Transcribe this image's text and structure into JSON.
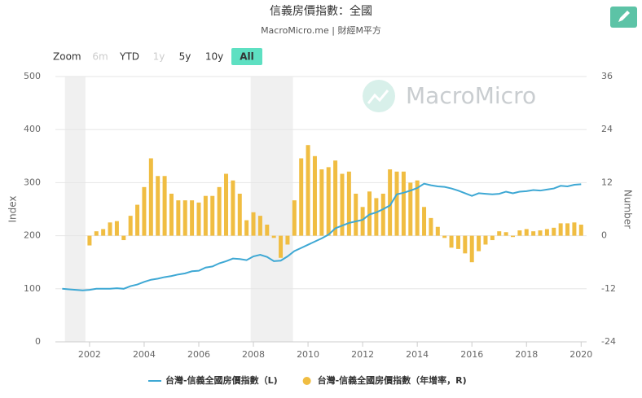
{
  "chart_data": {
    "type": "bar-line",
    "title": "信義房價指數：全國",
    "subtitle": "MacroMicro.me | 財經M平方",
    "watermark": "MacroMicro",
    "y_label": "Index",
    "y2_label": "Number",
    "xlim": [
      2000.75,
      2020.2
    ],
    "xticks": [
      2002,
      2004,
      2006,
      2008,
      2010,
      2012,
      2014,
      2016,
      2018,
      2020
    ],
    "ylim": [
      0,
      500
    ],
    "yticks": [
      0,
      100,
      200,
      300,
      400,
      500
    ],
    "y2lim": [
      -24,
      36
    ],
    "y2ticks": [
      -24,
      -12,
      0,
      12,
      24,
      36
    ],
    "grid": true,
    "shaded_ranges": [
      [
        2001.1,
        2001.85
      ],
      [
        2007.9,
        2009.45
      ]
    ],
    "series": [
      {
        "name": "台灣-信義全國房價指數（L)",
        "type": "line",
        "color": "#3ea8d4",
        "axis": "y",
        "x": [
          2001,
          2001.25,
          2001.5,
          2001.75,
          2002,
          2002.25,
          2002.5,
          2002.75,
          2003,
          2003.25,
          2003.5,
          2003.75,
          2004,
          2004.25,
          2004.5,
          2004.75,
          2005,
          2005.25,
          2005.5,
          2005.75,
          2006,
          2006.25,
          2006.5,
          2006.75,
          2007,
          2007.25,
          2007.5,
          2007.75,
          2008,
          2008.25,
          2008.5,
          2008.75,
          2009,
          2009.25,
          2009.5,
          2009.75,
          2010,
          2010.25,
          2010.5,
          2010.75,
          2011,
          2011.25,
          2011.5,
          2011.75,
          2012,
          2012.25,
          2012.5,
          2012.75,
          2013,
          2013.25,
          2013.5,
          2013.75,
          2014,
          2014.25,
          2014.5,
          2014.75,
          2015,
          2015.25,
          2015.5,
          2015.75,
          2016,
          2016.25,
          2016.5,
          2016.75,
          2017,
          2017.25,
          2017.5,
          2017.75,
          2018,
          2018.25,
          2018.5,
          2018.75,
          2019,
          2019.25,
          2019.5,
          2019.75,
          2020
        ],
        "values": [
          100,
          99,
          98,
          97,
          98,
          100,
          100,
          100,
          101,
          100,
          105,
          108,
          113,
          117,
          119,
          122,
          124,
          127,
          129,
          133,
          134,
          140,
          142,
          148,
          152,
          157,
          156,
          154,
          161,
          164,
          160,
          152,
          153,
          161,
          171,
          177,
          183,
          189,
          195,
          202,
          214,
          219,
          224,
          227,
          230,
          240,
          244,
          250,
          257,
          278,
          281,
          285,
          290,
          298,
          295,
          293,
          292,
          289,
          285,
          280,
          275,
          280,
          279,
          278,
          279,
          283,
          280,
          283,
          284,
          286,
          285,
          287,
          289,
          294,
          293,
          296,
          297
        ]
      },
      {
        "name": "台灣-信義全國房價指數（年增率，R)",
        "type": "bar",
        "color": "#f0bd42",
        "axis": "y2",
        "x": [
          2002,
          2002.25,
          2002.5,
          2002.75,
          2003,
          2003.25,
          2003.5,
          2003.75,
          2004,
          2004.25,
          2004.5,
          2004.75,
          2005,
          2005.25,
          2005.5,
          2005.75,
          2006,
          2006.25,
          2006.5,
          2006.75,
          2007,
          2007.25,
          2007.5,
          2007.75,
          2008,
          2008.25,
          2008.5,
          2008.75,
          2009,
          2009.25,
          2009.5,
          2009.75,
          2010,
          2010.25,
          2010.5,
          2010.75,
          2011,
          2011.25,
          2011.5,
          2011.75,
          2012,
          2012.25,
          2012.5,
          2012.75,
          2013,
          2013.25,
          2013.5,
          2013.75,
          2014,
          2014.25,
          2014.5,
          2014.75,
          2015,
          2015.25,
          2015.5,
          2015.75,
          2016,
          2016.25,
          2016.5,
          2016.75,
          2017,
          2017.25,
          2017.5,
          2017.75,
          2018,
          2018.25,
          2018.5,
          2018.75,
          2019,
          2019.25,
          2019.5,
          2019.75,
          2020
        ],
        "values": [
          -2.2,
          1,
          1.5,
          3,
          3.3,
          -1,
          4.5,
          7,
          11,
          17.5,
          13.5,
          13.5,
          9.5,
          8,
          8,
          8,
          7.5,
          9,
          9,
          11,
          14,
          12.5,
          9.5,
          3.5,
          5.3,
          4.5,
          2.5,
          -0.5,
          -5,
          -2,
          8,
          17.5,
          20.5,
          18,
          15,
          15.5,
          17,
          14,
          14.5,
          9.5,
          6.5,
          10,
          8.5,
          9.5,
          15,
          14.5,
          14.5,
          12,
          12.5,
          6.5,
          4,
          2,
          -0.5,
          -2.7,
          -3,
          -4,
          -6,
          -3.5,
          -2,
          -1,
          1,
          0.8,
          -0.3,
          1.2,
          1.5,
          1,
          1.2,
          1.5,
          1.8,
          2.8,
          2.8,
          3,
          2.5
        ]
      }
    ]
  },
  "range_selector": {
    "label": "Zoom",
    "buttons": [
      "6m",
      "YTD",
      "1y",
      "5y",
      "10y",
      "All"
    ],
    "disabled": [
      0,
      2
    ],
    "active": 5
  }
}
